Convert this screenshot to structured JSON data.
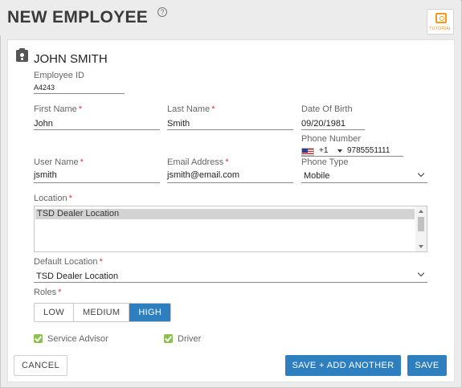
{
  "header": {
    "title": "NEW EMPLOYEE",
    "help_icon": "?",
    "tutorial_label": "TUTORIAL"
  },
  "employee": {
    "name": "JOHN SMITH"
  },
  "form": {
    "employee_id": {
      "label": "Employee ID",
      "value": "A4243"
    },
    "first_name": {
      "label": "First Name",
      "value": "John",
      "required": "*"
    },
    "last_name": {
      "label": "Last Name",
      "value": "Smith",
      "required": "*"
    },
    "date_of_birth": {
      "label": "Date Of Birth",
      "value": "09/20/1981"
    },
    "phone_number": {
      "label": "Phone Number",
      "country_code": "+1",
      "value": "9785551111"
    },
    "user_name": {
      "label": "User Name",
      "value": "jsmith",
      "required": "*"
    },
    "email": {
      "label": "Email Address",
      "value": "jsmith@email.com",
      "required": "*"
    },
    "phone_type": {
      "label": "Phone Type",
      "value": "Mobile"
    },
    "location": {
      "label": "Location",
      "required": "*",
      "options": [
        "TSD Dealer Location"
      ]
    },
    "default_location": {
      "label": "Default Location",
      "required": "*",
      "value": "TSD Dealer Location"
    },
    "roles": {
      "label": "Roles",
      "required": "*",
      "options": [
        "LOW",
        "MEDIUM",
        "HIGH"
      ],
      "selected": "HIGH"
    },
    "checkboxes": [
      {
        "label": "Service Advisor",
        "checked": true
      },
      {
        "label": "Driver",
        "checked": true
      }
    ]
  },
  "footer": {
    "cancel_label": "CANCEL",
    "save_add_label": "SAVE + ADD ANOTHER",
    "save_label": "SAVE"
  },
  "colors": {
    "primary": "#2e7fbf",
    "required": "#e0353b",
    "checkbox": "#8cc152",
    "tutorial": "#f39a1e"
  }
}
